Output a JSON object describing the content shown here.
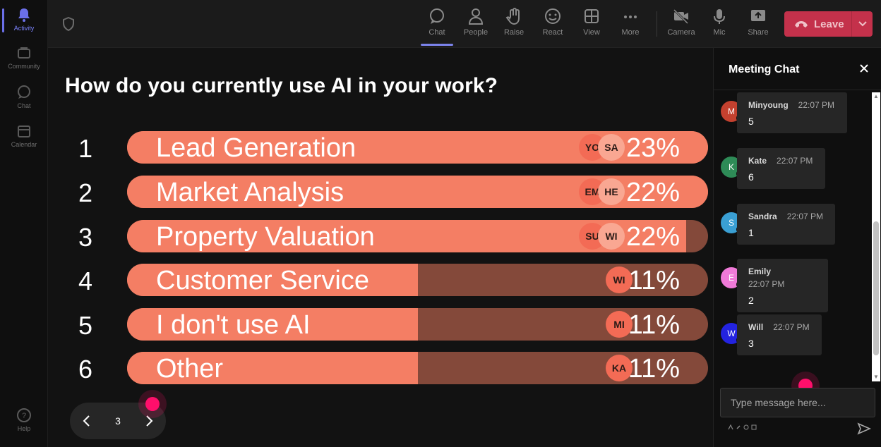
{
  "rail": {
    "items": [
      {
        "label": "Activity",
        "icon": "bell-icon"
      },
      {
        "label": "Community",
        "icon": "community-icon"
      },
      {
        "label": "Chat",
        "icon": "chat-icon"
      },
      {
        "label": "Calendar",
        "icon": "calendar-icon"
      }
    ],
    "help_label": "Help"
  },
  "toolbar": {
    "buttons": [
      {
        "label": "Chat",
        "icon": "chat-icon",
        "active": true
      },
      {
        "label": "People",
        "icon": "people-icon"
      },
      {
        "label": "Raise",
        "icon": "hand-icon"
      },
      {
        "label": "React",
        "icon": "smile-icon"
      },
      {
        "label": "View",
        "icon": "grid-icon"
      },
      {
        "label": "More",
        "icon": "more-icon"
      },
      {
        "label": "Camera",
        "icon": "camera-off-icon"
      },
      {
        "label": "Mic",
        "icon": "mic-icon"
      },
      {
        "label": "Share",
        "icon": "share-icon"
      }
    ],
    "leave_label": "Leave"
  },
  "poll": {
    "question": "How do you currently use AI in your work?",
    "options": [
      {
        "num": "1",
        "label": "Lead Generation",
        "percent": "23%",
        "value": 23,
        "fill": 1.0,
        "voters": [
          "YO",
          "SA"
        ]
      },
      {
        "num": "2",
        "label": "Market Analysis",
        "percent": "22%",
        "value": 22,
        "fill": 1.0,
        "voters": [
          "EM",
          "HE"
        ]
      },
      {
        "num": "3",
        "label": "Property Valuation",
        "percent": "22%",
        "value": 22,
        "fill": 0.962,
        "voters": [
          "SU",
          "WI"
        ]
      },
      {
        "num": "4",
        "label": "Customer Service",
        "percent": "11%",
        "value": 11,
        "fill": 0.5,
        "voters": [
          "WI"
        ]
      },
      {
        "num": "5",
        "label": "I don't use AI",
        "percent": "11%",
        "value": 11,
        "fill": 0.5,
        "voters": [
          "MI"
        ]
      },
      {
        "num": "6",
        "label": "Other",
        "percent": "11%",
        "value": 11,
        "fill": 0.5,
        "voters": [
          "KA"
        ]
      }
    ],
    "page": "3"
  },
  "chat": {
    "title": "Meeting Chat",
    "messages": [
      {
        "initial": "M",
        "name": "Minyoung",
        "time": "22:07 PM",
        "text": "5",
        "color": "#c4412f"
      },
      {
        "initial": "K",
        "name": "Kate",
        "time": "22:07 PM",
        "text": "6",
        "color": "#2e8b57"
      },
      {
        "initial": "S",
        "name": "Sandra",
        "time": "22:07 PM",
        "text": "1",
        "color": "#3a9fd3"
      },
      {
        "initial": "E",
        "name": "Emily",
        "time": "22:07 PM",
        "text": "2",
        "color": "#f07ad8"
      },
      {
        "initial": "W",
        "name": "Will",
        "time": "22:07 PM",
        "text": "3",
        "color": "#2323e0"
      }
    ],
    "input_placeholder": "Type message here..."
  },
  "colors": {
    "bar_fill": "#f47e64",
    "bar_track": "#84493a",
    "leave": "#c4314b",
    "accent": "#7b83eb",
    "pointer": "#ff0f6b"
  }
}
